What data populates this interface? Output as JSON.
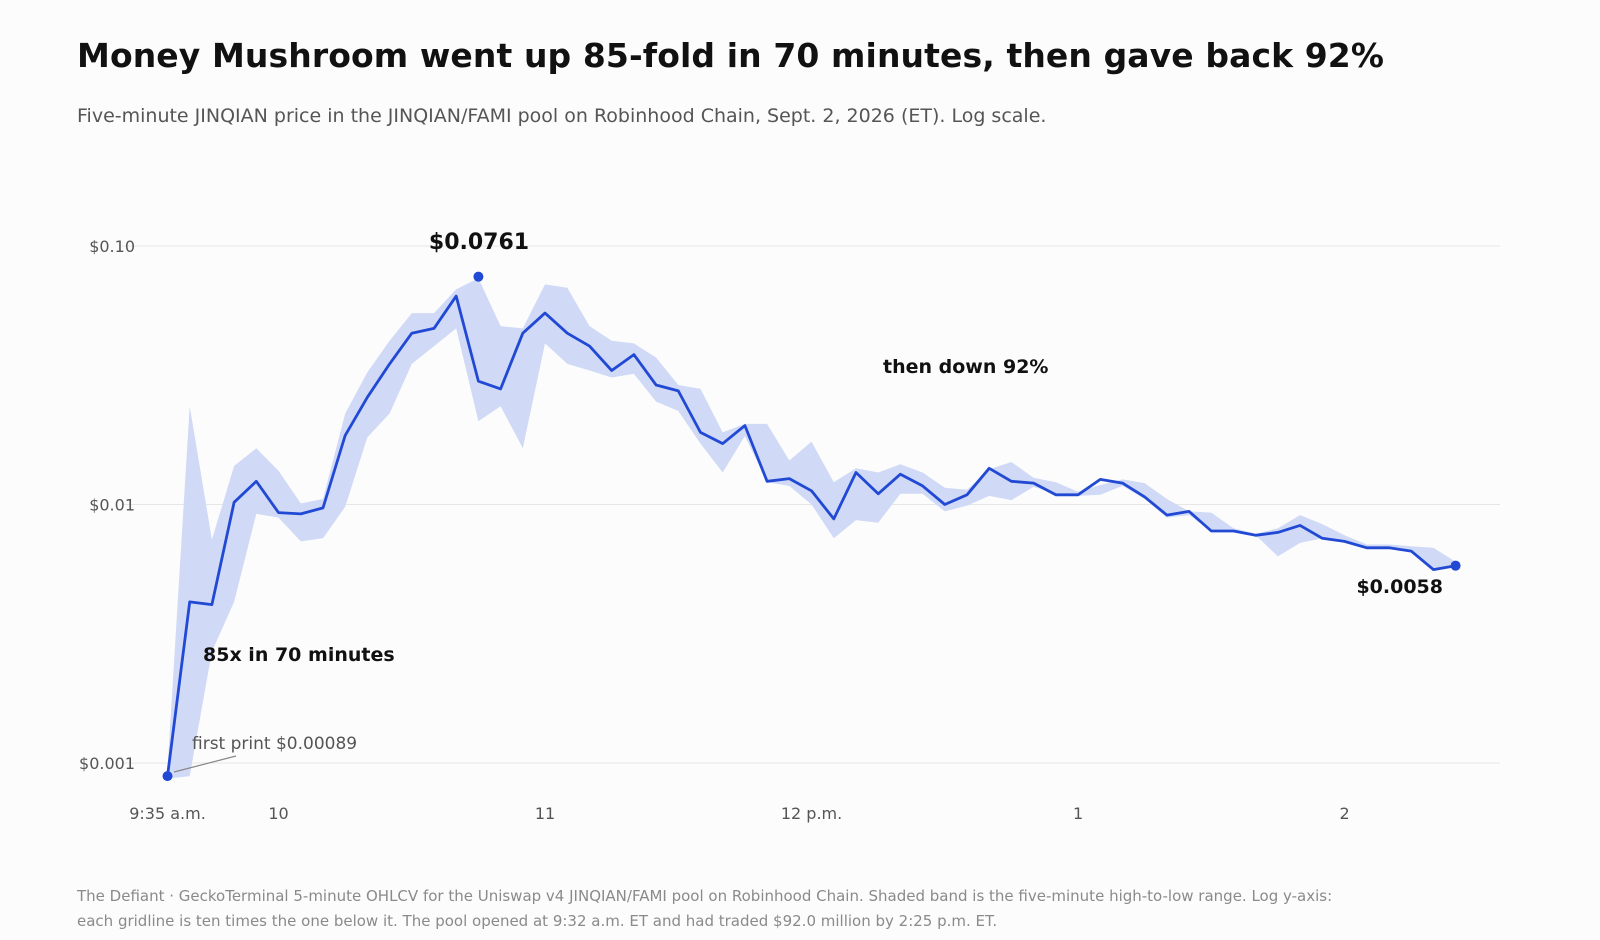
{
  "header": {
    "title": "Money Mushroom went up 85-fold in 70 minutes, then gave back 92%",
    "subtitle": "Five-minute JINQIAN price in the JINQIAN/FAMI pool on Robinhood Chain, Sept. 2, 2026 (ET). Log scale."
  },
  "footnote": {
    "line1": "The Defiant · GeckoTerminal 5-minute OHLCV for the Uniswap v4 JINQIAN/FAMI pool on Robinhood Chain. Shaded band is the five-minute high-to-low range. Log y-axis:",
    "line2": "each gridline is ten times the one below it. The pool opened at 9:32 a.m. ET and had traded $92.0 million by 2:25 p.m. ET."
  },
  "colors": {
    "line": "#2149d4",
    "band": "#d0daf6",
    "grid": "#e6e6e6",
    "axis_text": "#555555",
    "annotation": "#111111",
    "muted": "#555555"
  },
  "chart_data": {
    "type": "line",
    "x_unit": "time (ET)",
    "y_scale": "log",
    "ylim": [
      0.00085,
      0.2
    ],
    "grid": true,
    "y_ticks": [
      {
        "value": 0.1,
        "label": "$0.10"
      },
      {
        "value": 0.01,
        "label": "$0.01"
      },
      {
        "value": 0.001,
        "label": "$0.001"
      }
    ],
    "x_ticks": [
      {
        "time": "9:35",
        "label": "9:35 a.m."
      },
      {
        "time": "10:00",
        "label": "10"
      },
      {
        "time": "11:00",
        "label": "11"
      },
      {
        "time": "12:00",
        "label": "12 p.m."
      },
      {
        "time": "13:00",
        "label": "1"
      },
      {
        "time": "14:00",
        "label": "2"
      }
    ],
    "series": [
      {
        "x": [
          "9:35",
          "9:40",
          "9:45",
          "9:50",
          "9:55",
          "10:00",
          "10:05",
          "10:10",
          "10:15",
          "10:20",
          "10:25",
          "10:30",
          "10:35",
          "10:40",
          "10:45",
          "10:50",
          "10:55",
          "11:00",
          "11:05",
          "11:10",
          "11:15",
          "11:20",
          "11:25",
          "11:30",
          "11:35",
          "11:40",
          "11:45",
          "11:50",
          "11:55",
          "12:00",
          "12:05",
          "12:10",
          "12:15",
          "12:20",
          "12:25",
          "12:30",
          "12:35",
          "12:40",
          "12:45",
          "12:50",
          "12:55",
          "13:00",
          "13:05",
          "13:10",
          "13:15",
          "13:20",
          "13:25",
          "13:30",
          "13:35",
          "13:40",
          "13:45",
          "13:50",
          "13:55",
          "14:00",
          "14:05",
          "14:10",
          "14:15",
          "14:20",
          "14:25"
        ],
        "close": [
          0.00089,
          0.0042,
          0.0041,
          0.0102,
          0.0123,
          0.0093,
          0.0092,
          0.0097,
          0.0185,
          0.026,
          0.035,
          0.046,
          0.048,
          0.064,
          0.03,
          0.028,
          0.046,
          0.055,
          0.046,
          0.041,
          0.033,
          0.038,
          0.029,
          0.0275,
          0.019,
          0.0172,
          0.0202,
          0.0123,
          0.0126,
          0.0113,
          0.0088,
          0.0133,
          0.011,
          0.0131,
          0.0118,
          0.01,
          0.0109,
          0.0138,
          0.0123,
          0.0121,
          0.0109,
          0.0109,
          0.0125,
          0.0121,
          0.0107,
          0.0091,
          0.0094,
          0.0079,
          0.0079,
          0.0076,
          0.0078,
          0.0083,
          0.0074,
          0.0072,
          0.0068,
          0.0068,
          0.0066,
          0.0056,
          0.0058
        ],
        "high": [
          0.00095,
          0.024,
          0.0073,
          0.0141,
          0.0165,
          0.0135,
          0.0101,
          0.0105,
          0.0225,
          0.0325,
          0.043,
          0.055,
          0.055,
          0.068,
          0.075,
          0.049,
          0.048,
          0.071,
          0.069,
          0.049,
          0.043,
          0.042,
          0.037,
          0.029,
          0.028,
          0.019,
          0.0205,
          0.0205,
          0.0148,
          0.0175,
          0.0122,
          0.0138,
          0.0133,
          0.0143,
          0.0133,
          0.0116,
          0.0114,
          0.0137,
          0.0146,
          0.0127,
          0.0122,
          0.0112,
          0.0119,
          0.0125,
          0.0121,
          0.0105,
          0.0094,
          0.0093,
          0.0081,
          0.0077,
          0.0081,
          0.0091,
          0.0084,
          0.0076,
          0.007,
          0.007,
          0.0069,
          0.0068,
          0.006
        ],
        "low": [
          0.00087,
          0.00089,
          0.0027,
          0.0042,
          0.0092,
          0.0089,
          0.0072,
          0.0074,
          0.0098,
          0.0182,
          0.0225,
          0.035,
          0.041,
          0.048,
          0.021,
          0.024,
          0.0165,
          0.042,
          0.035,
          0.033,
          0.031,
          0.032,
          0.025,
          0.023,
          0.0172,
          0.0133,
          0.0184,
          0.0122,
          0.0118,
          0.01,
          0.0074,
          0.0087,
          0.0085,
          0.011,
          0.011,
          0.0094,
          0.0099,
          0.0108,
          0.0104,
          0.0117,
          0.011,
          0.0108,
          0.0109,
          0.0118,
          0.0105,
          0.0089,
          0.0091,
          0.0079,
          0.0079,
          0.0076,
          0.0063,
          0.0071,
          0.0074,
          0.0072,
          0.0068,
          0.0068,
          0.0066,
          0.0056,
          0.0058
        ]
      }
    ],
    "markers": [
      {
        "time": "9:35",
        "value": 0.00089
      },
      {
        "time": "10:45",
        "value": 0.0761
      },
      {
        "time": "14:25",
        "value": 0.0058
      }
    ],
    "annotations": {
      "first_print": "first print $0.00089",
      "rise": "85x in 70 minutes",
      "peak_label": "$0.0761",
      "decline": "then down 92%",
      "last_label": "$0.0058"
    }
  }
}
